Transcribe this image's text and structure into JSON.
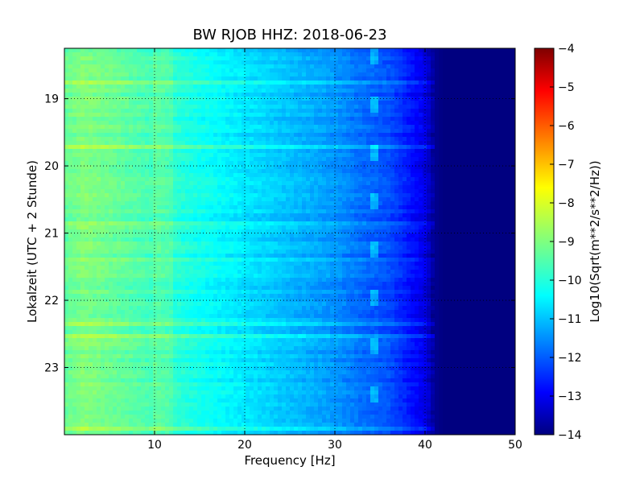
{
  "chart_data": {
    "type": "heatmap",
    "title": "BW RJOB HHZ: 2018-06-23",
    "xlabel": "Frequency [Hz]",
    "ylabel": "Lokalzeit (UTC + 2 Stunde)",
    "xlim": [
      0,
      50
    ],
    "ylim": [
      18.25,
      24.0
    ],
    "y_inverted": true,
    "x_ticks": [
      "10",
      "20",
      "30",
      "40",
      "50"
    ],
    "y_ticks": [
      "19",
      "20",
      "21",
      "22",
      "23"
    ],
    "grid": true,
    "colorbar": {
      "label": "Log10(Sqrt(m**2/s**2/Hz))",
      "range": [
        -14,
        -4
      ],
      "ticks": [
        "-14",
        "-13",
        "-12",
        "-11",
        "-10",
        "-9",
        "-8",
        "-7",
        "-6",
        "-5",
        "-4"
      ],
      "colormap": "jet"
    },
    "spectrum_profile": {
      "frequency_hz": [
        0,
        2,
        5,
        10,
        15,
        20,
        25,
        30,
        33,
        36,
        38,
        40,
        41,
        42,
        50
      ],
      "log10_amplitude": [
        -9.3,
        -9.0,
        -9.2,
        -9.6,
        -10.1,
        -10.5,
        -10.9,
        -11.3,
        -11.7,
        -12.0,
        -12.5,
        -13.0,
        -13.8,
        -14.0,
        -14.0
      ]
    },
    "line_at_hz": 34.3
  },
  "colors": {
    "background": "#ffffff",
    "axes": "#000000",
    "colormap": [
      "#00007f",
      "#0000ff",
      "#007fff",
      "#00ffff",
      "#7fff7f",
      "#ffff00",
      "#ff7f00",
      "#ff0000",
      "#7f0000"
    ]
  }
}
